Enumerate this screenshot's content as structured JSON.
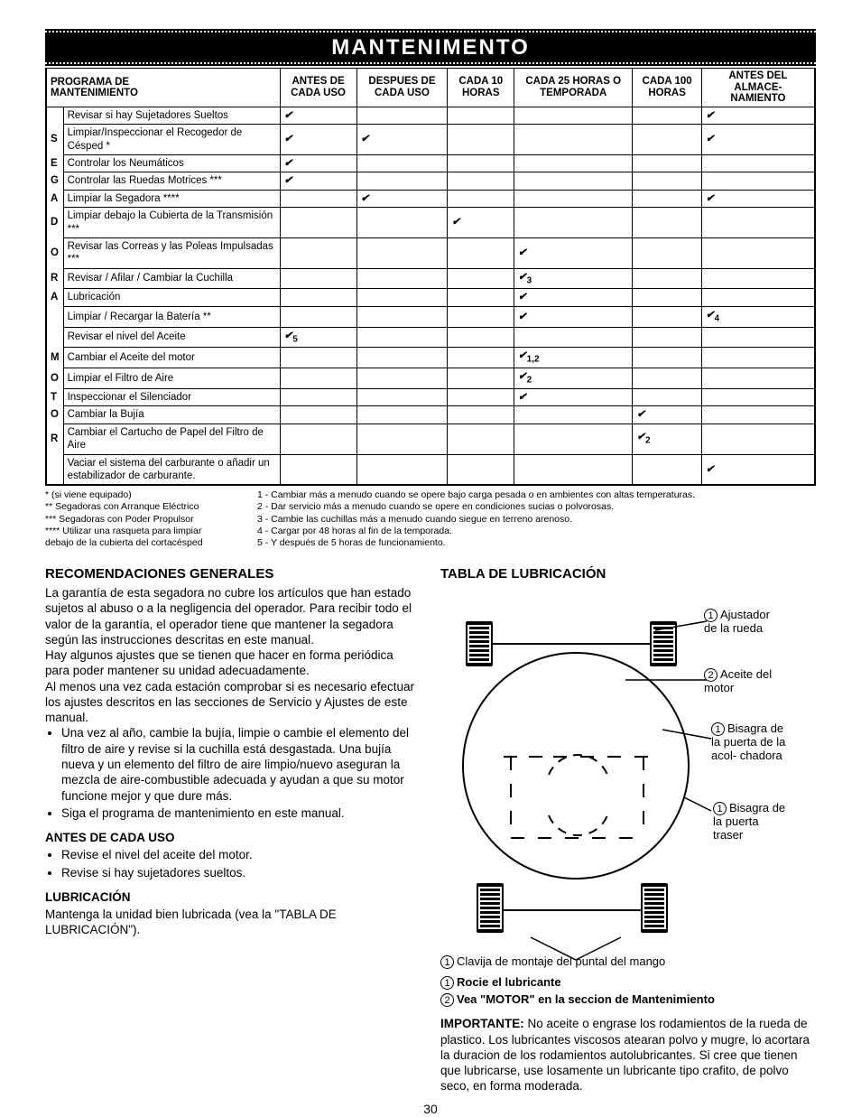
{
  "banner": "MANTENIMENTO",
  "page_number": 30,
  "table": {
    "title_line1": "PROGRAMA DE",
    "title_line2": "MANTENIMIENTO",
    "columns": [
      "ANTES DE CADA USO",
      "DESPUES DE CADA USO",
      "CADA 10 HORAS",
      "CADA 25 HORAS O TEMPORADA",
      "CADA 100 HORAS",
      "ANTES DEL ALMACE- NAMIENTO"
    ],
    "side_letters": [
      "",
      "S",
      "E",
      "G",
      "A",
      "D",
      "O",
      "R",
      "A",
      "",
      "",
      "M",
      "O",
      "T",
      "O",
      "R",
      ""
    ],
    "rows": [
      {
        "desc": "Revisar si hay Sujetadores Sueltos",
        "c": [
          "✔",
          "",
          "",
          "",
          "",
          "✔"
        ]
      },
      {
        "desc": "Limpiar/Inspeccionar el Recogedor de Césped *",
        "c": [
          "✔",
          "✔",
          "",
          "",
          "",
          "✔"
        ]
      },
      {
        "desc": "Controlar los Neumáticos",
        "c": [
          "✔",
          "",
          "",
          "",
          "",
          ""
        ]
      },
      {
        "desc": "Controlar las Ruedas Motrices ***",
        "c": [
          "✔",
          "",
          "",
          "",
          "",
          ""
        ]
      },
      {
        "desc": "Limpiar la Segadora ****",
        "c": [
          "",
          "✔",
          "",
          "",
          "",
          "✔"
        ]
      },
      {
        "desc": "Limpiar debajo la Cubierta de la Transmisión ***",
        "c": [
          "",
          "",
          "✔",
          "",
          "",
          ""
        ]
      },
      {
        "desc": "Revisar las Correas y las Poleas Impulsadas ***",
        "c": [
          "",
          "",
          "",
          "✔",
          "",
          ""
        ]
      },
      {
        "desc": "Revisar / Afilar / Cambiar la Cuchilla",
        "c": [
          "",
          "",
          "",
          "✔3",
          "",
          ""
        ]
      },
      {
        "desc": "Lubricación",
        "c": [
          "",
          "",
          "",
          "✔",
          "",
          ""
        ]
      },
      {
        "desc": "Limpiar / Recargar la Batería **",
        "c": [
          "",
          "",
          "",
          "✔",
          "",
          "✔4"
        ]
      },
      {
        "desc": "Revisar el nivel del Aceite",
        "c": [
          "✔5",
          "",
          "",
          "",
          "",
          ""
        ]
      },
      {
        "desc": "Cambiar el Aceite del motor",
        "c": [
          "",
          "",
          "",
          "✔1,2",
          "",
          ""
        ]
      },
      {
        "desc": "Limpiar el Filtro de Aire",
        "c": [
          "",
          "",
          "",
          "✔2",
          "",
          ""
        ]
      },
      {
        "desc": "Inspeccionar el Silenciador",
        "c": [
          "",
          "",
          "",
          "✔",
          "",
          ""
        ]
      },
      {
        "desc": "Cambiar la Bujía",
        "c": [
          "",
          "",
          "",
          "",
          "✔",
          ""
        ]
      },
      {
        "desc": "Cambiar el Cartucho de Papel del Filtro de Aire",
        "c": [
          "",
          "",
          "",
          "",
          "✔2",
          ""
        ]
      },
      {
        "desc": "Vaciar el sistema del carburante o añadir un estabilizador de carburante.",
        "c": [
          "",
          "",
          "",
          "",
          "",
          "✔"
        ]
      }
    ]
  },
  "footnotes": {
    "left": [
      "* (si viene equipado)",
      "** Segadoras con Arranque Eléctrico",
      "*** Segadoras con Poder Propulsor",
      "**** Utilizar una rasqueta para limpiar",
      "debajo de la cubierta del cortacésped"
    ],
    "right": [
      "1 - Cambiar más a menudo cuando se opere bajo carga pesada o en ambientes con altas temperaturas.",
      "2 - Dar servicio más a menudo cuando se opere en condiciones sucias o polvorosas.",
      "3 - Cambie las cuchillas más a menudo cuando siegue en terreno arenoso.",
      "4 - Cargar por 48 horas al fin de la temporada.",
      "5 - Y después de 5 horas de funcionamiento."
    ]
  },
  "left_col": {
    "h1": "RECOMENDACIONES GENERALES",
    "p1": "La garantía de esta segadora no cubre los artículos que han estado sujetos al abuso o a la negligencia del operador. Para recibir todo el valor de la garantía, el operador tiene que mantener la segadora según las instrucciones descritas en este manual.",
    "p2": "Hay algunos ajustes que se tienen que hacer en forma periódica para poder mantener su unidad adecuadamente.",
    "p3": "Al menos una vez cada estación comprobar si es necesario efectuar los ajustes descritos en las secciones de Servicio y Ajustes de este manual.",
    "bullets": [
      "Una vez al año, cambie la bujía, limpie o cambie el elemento del filtro de aire y revise si la cuchilla está desgastada. Una bujía nueva y un elemento del filtro de aire limpio/nuevo aseguran la mezcla de aire-combustible adecuada y ayudan a que su motor funcione mejor y que dure más.",
      "Siga el programa de mantenimiento en este manual."
    ],
    "h2": "ANTES DE CADA USO",
    "bullets2": [
      "Revise el nivel del aceite del motor.",
      "Revise si hay sujetadores sueltos."
    ],
    "h3": "LUBRICACIÓN",
    "p4": "Mantenga la unidad bien lubricada (vea la \"TABLA DE LUBRICACIÓN\")."
  },
  "right_col": {
    "h1": "TABLA DE LUBRICACIÓN",
    "labels": {
      "l1": "Ajustador de la rueda",
      "l2": "Aceite del motor",
      "l3": "Bisagra de la puerta de la acol- chadora",
      "l4": "Bisagra de la puerta traser",
      "l5": "Clavija de montaje del puntal del mango"
    },
    "legend1": "Rocie el lubricante",
    "legend2": "Vea \"MOTOR\" en la seccion de Mantenimiento",
    "important_label": "IMPORTANTE:",
    "important": "No aceite o engrase los rodamientos de la rueda de plastico. Los lubricantes viscosos atearan polvo y mugre, lo acortara la duracion de los rodamientos autolubricantes. Si cree que tienen que lubricarse, use losamente un lubricante tipo crafito, de polvo seco, en forma moderada."
  }
}
